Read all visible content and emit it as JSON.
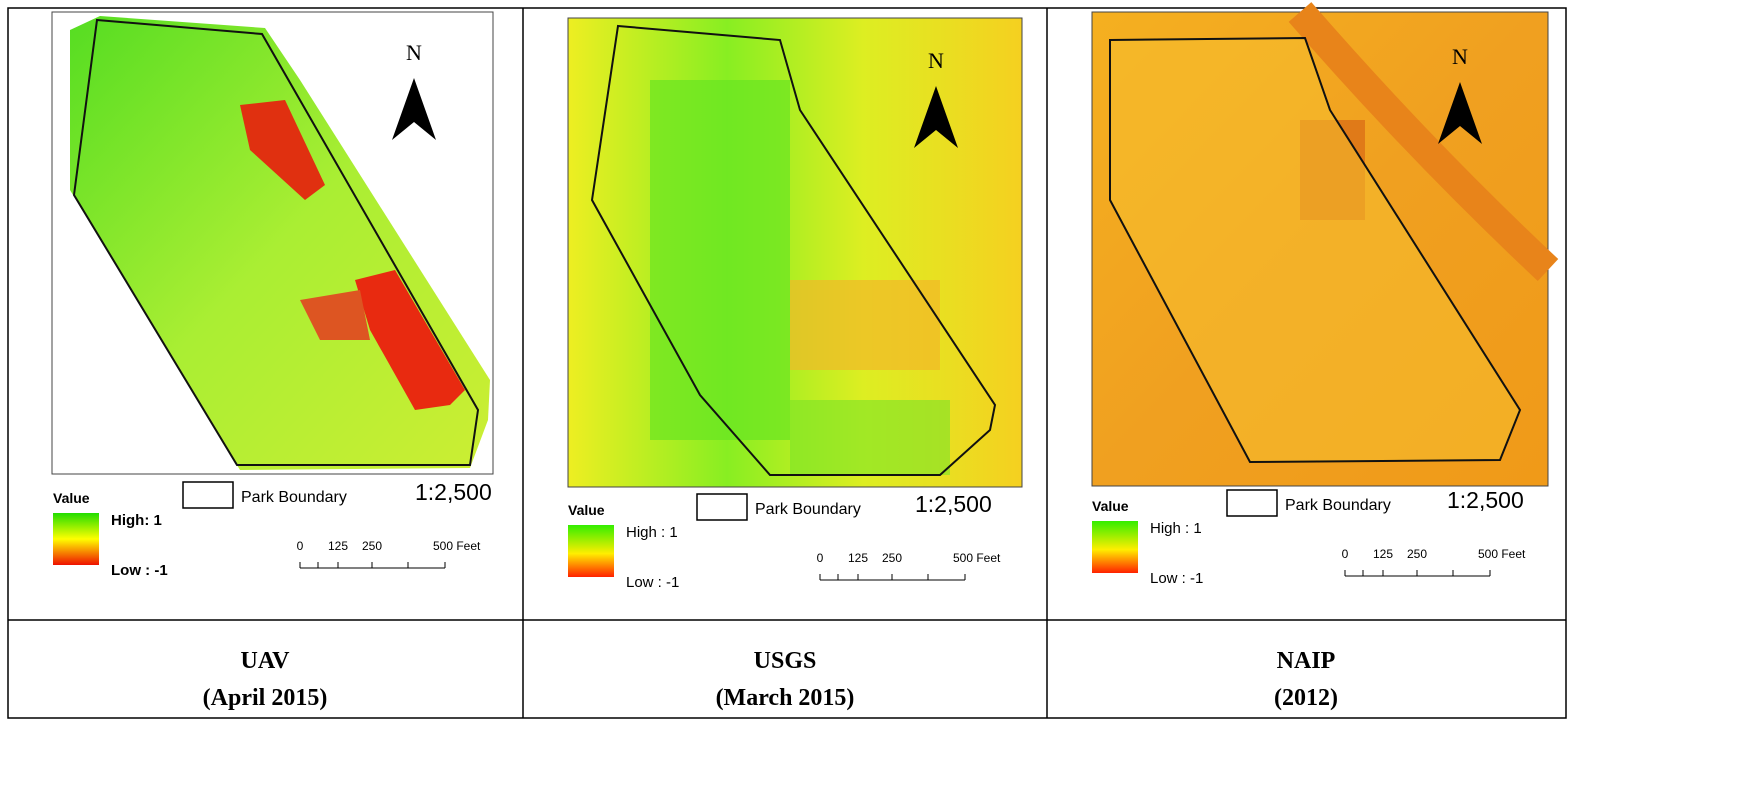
{
  "panels": [
    {
      "north": "N",
      "legend": {
        "title": "Value",
        "high": "High: 1",
        "low": "Low : -1",
        "boundary": "Park Boundary"
      },
      "scale": "1:2,500",
      "scale_bar": [
        "0",
        "125",
        "250",
        "500 Feet"
      ],
      "caption": {
        "name": "UAV",
        "date": "(April 2015)"
      }
    },
    {
      "north": "N",
      "legend": {
        "title": "Value",
        "high": "High : 1",
        "low": "Low : -1",
        "boundary": "Park Boundary"
      },
      "scale": "1:2,500",
      "scale_bar": [
        "0",
        "125",
        "250",
        "500 Feet"
      ],
      "caption": {
        "name": "USGS",
        "date": "(March 2015)"
      }
    },
    {
      "north": "N",
      "legend": {
        "title": "Value",
        "high": "High : 1",
        "low": "Low : -1",
        "boundary": "Park Boundary"
      },
      "scale": "1:2,500",
      "scale_bar": [
        "0",
        "125",
        "250",
        "500 Feet"
      ],
      "caption": {
        "name": "NAIP",
        "date": "(2012)"
      }
    }
  ]
}
